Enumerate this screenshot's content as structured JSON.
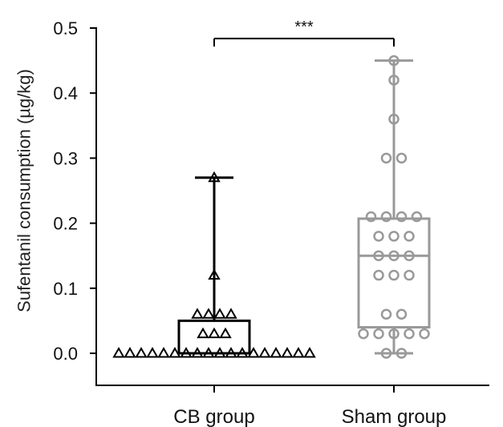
{
  "chart_data": {
    "type": "box",
    "title": "",
    "xlabel": "",
    "ylabel": "Sufentanil consumption (µg/kg)",
    "ylim": [
      0,
      0.5
    ],
    "yticks": [
      "0.0",
      "0.1",
      "0.2",
      "0.3",
      "0.4",
      "0.5"
    ],
    "categories": [
      "CB group",
      "Sham group"
    ],
    "series": [
      {
        "category": "CB group",
        "color": "#000000",
        "marker": "triangle",
        "min": 0,
        "q1": 0,
        "median": 0,
        "q3": 0.05,
        "max": 0.27,
        "points": [
          0.27,
          0.12,
          0.06,
          0.06,
          0.06,
          0.06,
          0.03,
          0.03,
          0.03,
          0,
          0,
          0,
          0,
          0,
          0,
          0,
          0,
          0,
          0,
          0,
          0,
          0,
          0,
          0,
          0,
          0,
          0
        ]
      },
      {
        "category": "Sham group",
        "color": "#999999",
        "marker": "circle",
        "min": 0,
        "q1": 0.04,
        "median": 0.15,
        "q3": 0.207,
        "max": 0.45,
        "points": [
          0.45,
          0.42,
          0.36,
          0.3,
          0.3,
          0.21,
          0.21,
          0.21,
          0.21,
          0.18,
          0.18,
          0.18,
          0.15,
          0.15,
          0.15,
          0.12,
          0.12,
          0.12,
          0.06,
          0.06,
          0.03,
          0.03,
          0.03,
          0.03,
          0.03,
          0,
          0
        ]
      }
    ],
    "annotations": [
      {
        "text": "***",
        "between": [
          "CB group",
          "Sham group"
        ],
        "at_y": 0.49
      }
    ]
  }
}
